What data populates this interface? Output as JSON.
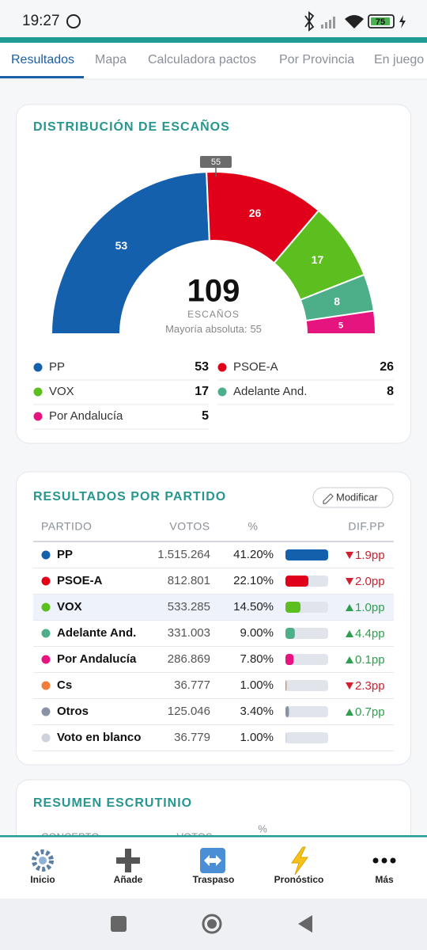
{
  "status_bar": {
    "time": "19:27",
    "battery": "75"
  },
  "tabs": [
    "Resultados",
    "Mapa",
    "Calculadora pactos",
    "Por Provincia",
    "En juego"
  ],
  "chart_data": {
    "type": "hemicycle",
    "title": "DISTRIBUCIÓN DE ESCAÑOS",
    "categories": [
      "PP",
      "PSOE-A",
      "VOX",
      "Adelante And.",
      "Por Andalucía"
    ],
    "values": [
      53,
      26,
      17,
      8,
      5
    ],
    "colors": [
      "#1560ad",
      "#e0001a",
      "#5cbf1f",
      "#4caf8a",
      "#e5147f"
    ],
    "total": 109,
    "total_label": "ESCAÑOS",
    "majority_label": "Mayoría absoluta:",
    "majority": 55
  },
  "results": {
    "title": "RESULTADOS POR PARTIDO",
    "button": "Modificar",
    "columns": [
      "PARTIDO",
      "VOTOS",
      "%",
      "DIF.PP"
    ],
    "rows": [
      {
        "party": "PP",
        "color": "#1560ad",
        "votes": "1.515.264",
        "pct": 41.2,
        "pct_label": "41.20%",
        "dif": "1.9pp",
        "trend": "down"
      },
      {
        "party": "PSOE-A",
        "color": "#e0001a",
        "votes": "812.801",
        "pct": 22.1,
        "pct_label": "22.10%",
        "dif": "2.0pp",
        "trend": "down"
      },
      {
        "party": "VOX",
        "color": "#5cbf1f",
        "votes": "533.285",
        "pct": 14.5,
        "pct_label": "14.50%",
        "dif": "1.0pp",
        "trend": "up"
      },
      {
        "party": "Adelante And.",
        "color": "#4caf8a",
        "votes": "331.003",
        "pct": 9.0,
        "pct_label": "9.00%",
        "dif": "4.4pp",
        "trend": "up"
      },
      {
        "party": "Por Andalucía",
        "color": "#e5147f",
        "votes": "286.869",
        "pct": 7.8,
        "pct_label": "7.80%",
        "dif": "0.1pp",
        "trend": "up"
      },
      {
        "party": "Cs",
        "color": "#f07d3a",
        "votes": "36.777",
        "pct": 1.0,
        "pct_label": "1.00%",
        "dif": "2.3pp",
        "trend": "down"
      },
      {
        "party": "Otros",
        "color": "#8a93a6",
        "votes": "125.046",
        "pct": 3.4,
        "pct_label": "3.40%",
        "dif": "0.7pp",
        "trend": "up"
      },
      {
        "party": "Voto en blanco",
        "color": "#cfd2da",
        "votes": "36.779",
        "pct": 1.0,
        "pct_label": "1.00%"
      }
    ]
  },
  "summary": {
    "title": "RESUMEN ESCRUTINIO",
    "columns": [
      "CONCEPTO",
      "VOTOS",
      "%"
    ]
  },
  "bottom_nav": [
    "Inicio",
    "Añade",
    "Traspaso",
    "Pronóstico",
    "Más"
  ]
}
